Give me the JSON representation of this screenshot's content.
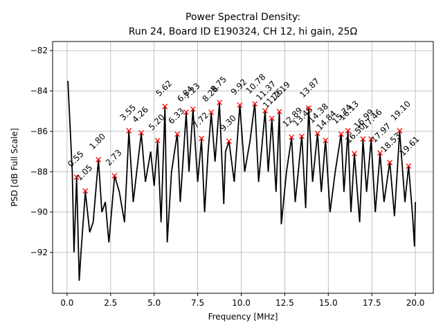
{
  "chart_data": {
    "type": "line",
    "title": "Power Spectral Density:",
    "subtitle": "Run 24, Board ID E190324, CH 12, hi gain, 25Ω",
    "x_label": "Frequency [MHz]",
    "y_label": "PSD [dB Full Scale]",
    "xlim": [
      -0.83,
      21.03
    ],
    "ylim": [
      -94.02,
      -81.55
    ],
    "xticks": [
      {
        "value": 0,
        "label": "0.0"
      },
      {
        "value": 2.5,
        "label": "2.5"
      },
      {
        "value": 5,
        "label": "5.0"
      },
      {
        "value": 7.5,
        "label": "7.5"
      },
      {
        "value": 10,
        "label": "10.0"
      },
      {
        "value": 12.5,
        "label": "12.5"
      },
      {
        "value": 15,
        "label": "15.0"
      },
      {
        "value": 17.5,
        "label": "17.5"
      },
      {
        "value": 20,
        "label": "20.0"
      }
    ],
    "yticks": [
      {
        "value": -92,
        "label": "−92"
      },
      {
        "value": -90,
        "label": "−90"
      },
      {
        "value": -88,
        "label": "−88"
      },
      {
        "value": -86,
        "label": "−86"
      },
      {
        "value": -84,
        "label": "−84"
      },
      {
        "value": -82,
        "label": "−82"
      }
    ],
    "grid": true,
    "series": [
      {
        "color": "#000000",
        "x": [
          0.05,
          0.3,
          0.4,
          0.55,
          0.7,
          0.8,
          1.05,
          1.3,
          1.5,
          1.8,
          2.0,
          2.2,
          2.4,
          2.73,
          3.0,
          3.3,
          3.55,
          3.8,
          4.0,
          4.26,
          4.5,
          4.8,
          5.0,
          5.2,
          5.4,
          5.62,
          5.75,
          6.0,
          6.33,
          6.5,
          6.84,
          7.0,
          7.23,
          7.5,
          7.72,
          7.9,
          8.1,
          8.28,
          8.5,
          8.75,
          9.0,
          9.1,
          9.3,
          9.6,
          9.92,
          10.2,
          10.5,
          10.78,
          11.0,
          11.37,
          11.55,
          11.76,
          12.0,
          12.19,
          12.3,
          12.6,
          12.89,
          13.1,
          13.3,
          13.48,
          13.7,
          13.87,
          14.1,
          14.38,
          14.6,
          14.84,
          15.1,
          15.4,
          15.74,
          15.9,
          16.13,
          16.3,
          16.5,
          16.8,
          16.99,
          17.2,
          17.46,
          17.7,
          17.97,
          18.2,
          18.53,
          18.8,
          19.1,
          19.4,
          19.61,
          19.85,
          19.95,
          20.0
        ],
        "values": [
          -83.5,
          -88,
          -92,
          -88.3,
          -93.4,
          -92,
          -89,
          -91,
          -90.5,
          -87.4,
          -90,
          -89.5,
          -91.5,
          -88.2,
          -89,
          -90.5,
          -86,
          -89.5,
          -88,
          -86.1,
          -88.5,
          -87,
          -88.7,
          -86.5,
          -90.5,
          -84.8,
          -91.5,
          -88,
          -86.1,
          -89.5,
          -85.1,
          -88,
          -84.9,
          -88.5,
          -86.4,
          -90,
          -87,
          -85.1,
          -87.5,
          -84.6,
          -89.6,
          -87,
          -86.5,
          -88.5,
          -84.7,
          -88,
          -86.5,
          -84.6,
          -88.5,
          -85,
          -88,
          -85.4,
          -89,
          -85,
          -90.6,
          -88,
          -86.3,
          -89.5,
          -87.8,
          -86.2,
          -89.8,
          -84.8,
          -88.5,
          -86.1,
          -89,
          -86.4,
          -90,
          -88,
          -86.1,
          -89,
          -86,
          -90,
          -87.1,
          -90.5,
          -86.4,
          -89,
          -86.4,
          -90,
          -87.1,
          -89.5,
          -87.5,
          -90.2,
          -86,
          -89.5,
          -87.7,
          -90.3,
          -91.7,
          -89.5
        ]
      },
      {
        "color": "#ff0000",
        "x": [
          0.55,
          1.05,
          1.8,
          2.73,
          3.55,
          4.26,
          5.2,
          5.62,
          6.33,
          6.84,
          7.23,
          7.72,
          8.28,
          8.75,
          9.3,
          9.92,
          10.78,
          11.37,
          11.76,
          12.19,
          12.89,
          13.48,
          13.87,
          14.38,
          14.84,
          15.74,
          16.13,
          16.5,
          16.99,
          17.46,
          17.97,
          18.53,
          19.1,
          19.61
        ],
        "values": [
          -88.27,
          -88.95,
          -87.4,
          -88.2,
          -85.97,
          -86.07,
          -86.45,
          -84.77,
          -86.14,
          -85.05,
          -84.9,
          -86.35,
          -85.05,
          -84.57,
          -86.49,
          -84.7,
          -84.64,
          -84.98,
          -85.36,
          -85.02,
          -86.29,
          -86.25,
          -84.84,
          -86.1,
          -86.45,
          -86.14,
          -85.97,
          -87.1,
          -86.38,
          -86.38,
          -87.07,
          -87.55,
          -85.97,
          -87.72
        ],
        "value_labels": [
          "0.55",
          "1.05",
          "1.80",
          "2.73",
          "3.55",
          "4.26",
          "5.20",
          "5.62",
          "6.33",
          "6.84",
          "7.23",
          "7.72",
          "8.28",
          "8.75",
          "9.30",
          "9.92",
          "10.78",
          "11.37",
          "11.76",
          "12.19",
          "12.89",
          "13.48",
          "13.87",
          "14.38",
          "14.84",
          "15.74",
          "16.13",
          "16.50",
          "16.99",
          "17.46",
          "17.97",
          "18.53",
          "19.10",
          "19.61"
        ]
      }
    ]
  }
}
